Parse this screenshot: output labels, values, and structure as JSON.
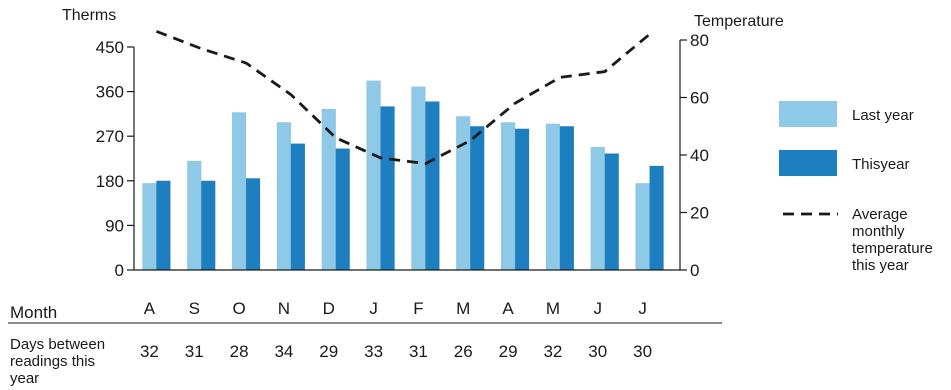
{
  "chart_data": {
    "type": "bar",
    "yleft_label": "Therms",
    "yright_label": "Temperature",
    "yleft_ticks": [
      "450",
      "360",
      "270",
      "180",
      "90",
      "0"
    ],
    "yright_ticks": [
      "80",
      "60",
      "40",
      "20",
      "0"
    ],
    "ylim_left": [
      0,
      450
    ],
    "ylim_right": [
      0,
      80
    ],
    "categories": [
      "A",
      "S",
      "O",
      "N",
      "D",
      "J",
      "F",
      "M",
      "A",
      "M",
      "J",
      "J"
    ],
    "series": [
      {
        "name": "Last year",
        "values": [
          175,
          220,
          318,
          298,
          325,
          382,
          370,
          310,
          298,
          295,
          248,
          175
        ]
      },
      {
        "name": "Thisyear",
        "values": [
          180,
          180,
          185,
          255,
          245,
          330,
          340,
          290,
          285,
          290,
          235,
          210
        ]
      }
    ],
    "temperature": {
      "name": "Average monthly temperature this year",
      "values": [
        83,
        77,
        72,
        61,
        46,
        39,
        37,
        45,
        58,
        67,
        69,
        82
      ]
    },
    "legend": {
      "last_year": "Last year",
      "this_year": "Thisyear",
      "temp_lines": [
        "Average",
        "monthly",
        "temperature",
        "this year"
      ]
    },
    "month_row_label": "Month",
    "days_row_label_lines": [
      "Days between",
      "readings this",
      "year"
    ],
    "days_between_readings": [
      "32",
      "31",
      "28",
      "34",
      "29",
      "33",
      "31",
      "26",
      "29",
      "32",
      "30",
      "30"
    ],
    "colors": {
      "last_year": "#8ecae8",
      "this_year": "#1e7fc0",
      "temperature": "#1a1a1a",
      "axis": "#1a1a1a"
    }
  }
}
